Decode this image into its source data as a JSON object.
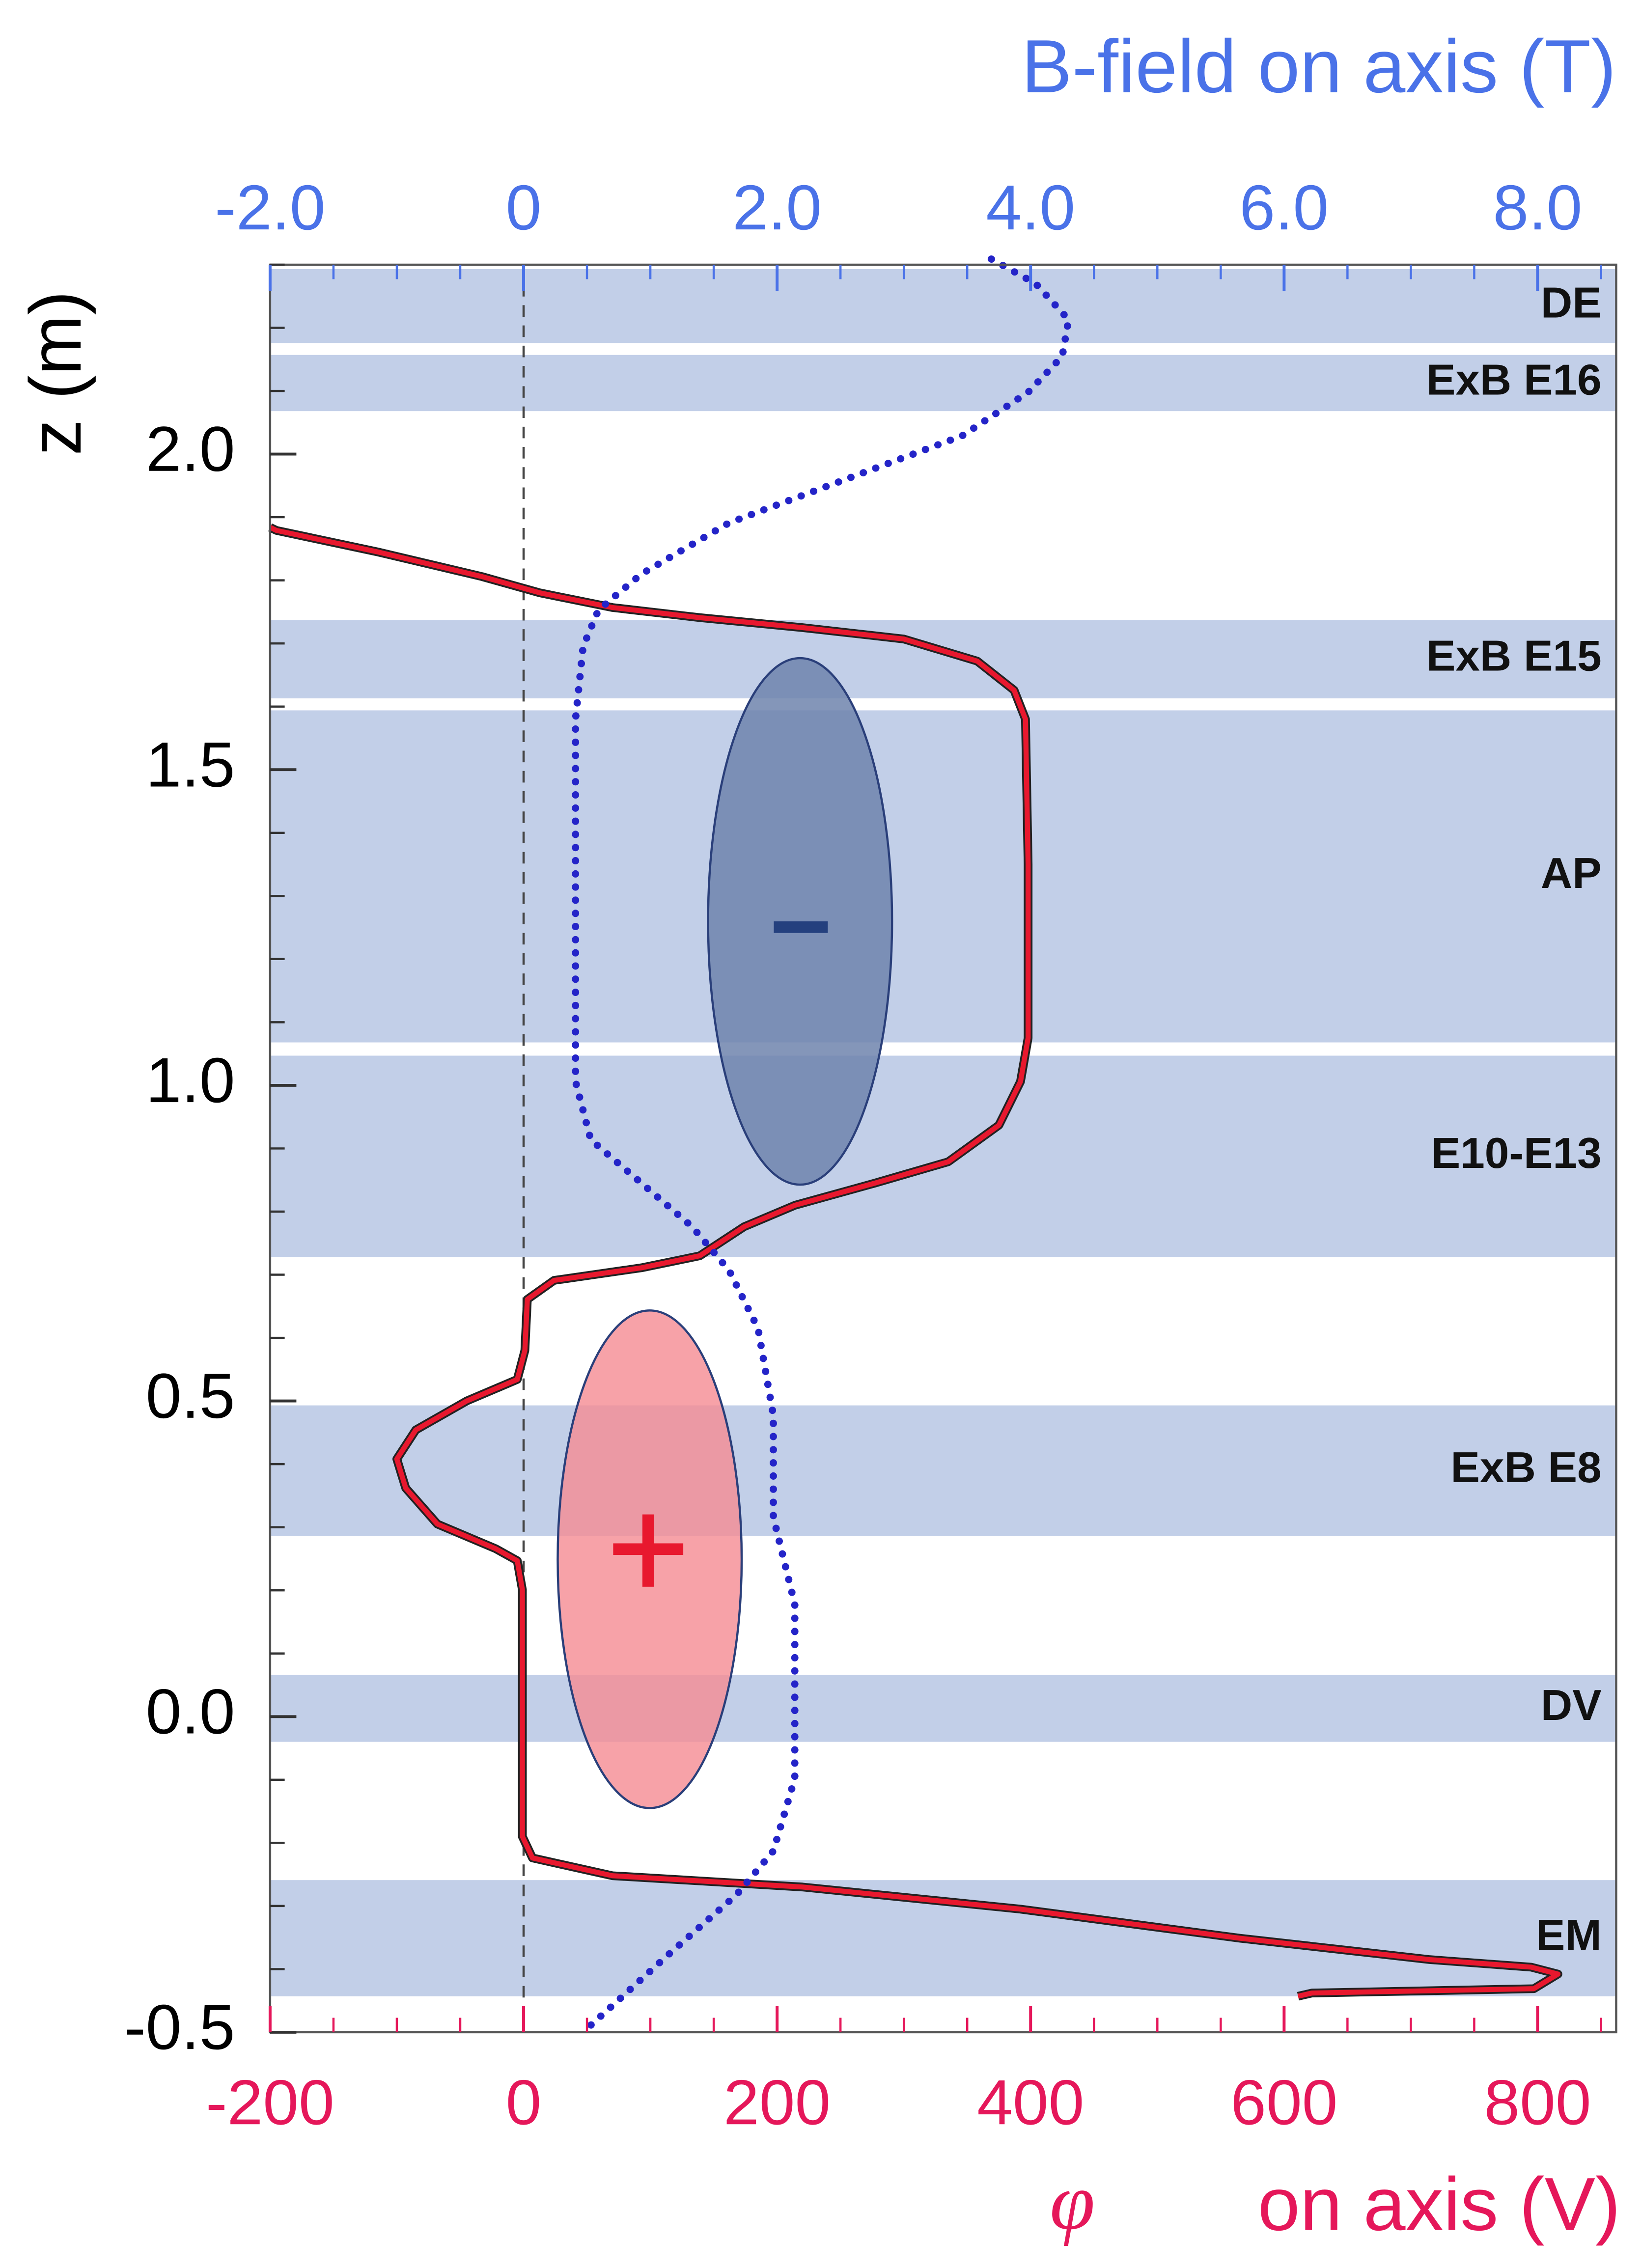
{
  "chart_data": {
    "type": "line",
    "title": "B-field on axis (T)",
    "ylabel": "z (m)",
    "xlabel_symbol": "φ",
    "xlabel": "on axis (V)",
    "xlim": [
      -200,
      862
    ],
    "xticks": [
      -200,
      0,
      200,
      400,
      600,
      800
    ],
    "xminor": 50,
    "x2lim": [
      -2.0,
      8.62
    ],
    "x2ticks": [
      {
        "value": -2.0,
        "label": "-2.0"
      },
      0,
      {
        "value": 2.0,
        "label": "2.0"
      },
      {
        "value": 4.0,
        "label": "4.0"
      },
      {
        "value": 6.0,
        "label": "6.0"
      },
      {
        "value": 8.0,
        "label": "8.0"
      }
    ],
    "x2minor": 0.5,
    "ylim": [
      -0.5,
      2.3
    ],
    "yticks": [
      {
        "value": -0.5,
        "label": "-0.5"
      },
      {
        "value": 0.0,
        "label": "0.0"
      },
      {
        "value": 0.5,
        "label": "0.5"
      },
      {
        "value": 1.0,
        "label": "1.0"
      },
      {
        "value": 1.5,
        "label": "1.5"
      },
      {
        "value": 2.0,
        "label": "2.0"
      }
    ],
    "yminor": 0.1,
    "zero_line": true,
    "x_color": "#e5175a",
    "x2_color": "#4a72e8",
    "band_color": "#c2cfe8",
    "bands": [
      {
        "label": "DE",
        "z": [
          2.176,
          2.293
        ]
      },
      {
        "label": "ExB E16",
        "z": [
          2.068,
          2.157
        ]
      },
      {
        "label": "ExB E15",
        "z": [
          1.613,
          1.737
        ]
      },
      {
        "label": "AP",
        "z": [
          1.068,
          1.594
        ]
      },
      {
        "label": "E10-E13",
        "z": [
          0.728,
          1.047
        ]
      },
      {
        "label": "ExB E8",
        "z": [
          0.286,
          0.493
        ]
      },
      {
        "label": "DV",
        "z": [
          -0.04,
          0.066
        ]
      },
      {
        "label": "EM",
        "z": [
          -0.443,
          -0.259
        ]
      }
    ],
    "series": [
      {
        "color": "#e8182e",
        "axis": "x",
        "style": "solid",
        "z": [
          1.884,
          1.879,
          1.845,
          1.806,
          1.78,
          1.757,
          1.741,
          1.725,
          1.707,
          1.672,
          1.626,
          1.58,
          1.35,
          1.075,
          1.006,
          0.937,
          0.879,
          0.845,
          0.81,
          0.776,
          0.73,
          0.711,
          0.691,
          0.661,
          0.58,
          0.534,
          0.5,
          0.454,
          0.408,
          0.362,
          0.305,
          0.266,
          0.247,
          0.201,
          -0.19,
          -0.224,
          -0.252,
          -0.27,
          -0.305,
          -0.351,
          -0.385,
          -0.397,
          -0.408,
          -0.431,
          -0.438,
          -0.443
        ],
        "values": [
          -200,
          -195,
          -115,
          -33,
          13,
          70,
          139,
          220,
          300,
          358,
          387,
          396,
          398,
          398,
          392,
          375,
          335,
          277,
          214,
          174,
          139,
          93,
          24,
          3,
          1,
          -5,
          -45,
          -85,
          -100,
          -93,
          -68,
          -22,
          -5,
          -1,
          -1,
          7,
          70,
          220,
          392,
          565,
          715,
          795,
          816,
          797,
          622,
          611
        ]
      },
      {
        "color": "#2424c8",
        "axis": "x2",
        "style": "dotted",
        "z": [
          2.309,
          2.27,
          2.213,
          2.155,
          2.098,
          2.029,
          1.96,
          1.891,
          1.81,
          1.753,
          1.695,
          1.58,
          1.305,
          1.006,
          0.914,
          0.845,
          0.776,
          0.707,
          0.615,
          0.477,
          0.316,
          0.178,
          -0.098,
          -0.213,
          -0.282,
          -0.374,
          -0.489
        ],
        "values": [
          3.69,
          4.04,
          4.3,
          4.25,
          3.98,
          3.46,
          2.54,
          1.62,
          0.93,
          0.59,
          0.47,
          0.41,
          0.41,
          0.41,
          0.53,
          0.93,
          1.33,
          1.62,
          1.85,
          1.97,
          1.97,
          2.14,
          2.14,
          1.97,
          1.68,
          1.16,
          0.53
        ]
      }
    ]
  }
}
